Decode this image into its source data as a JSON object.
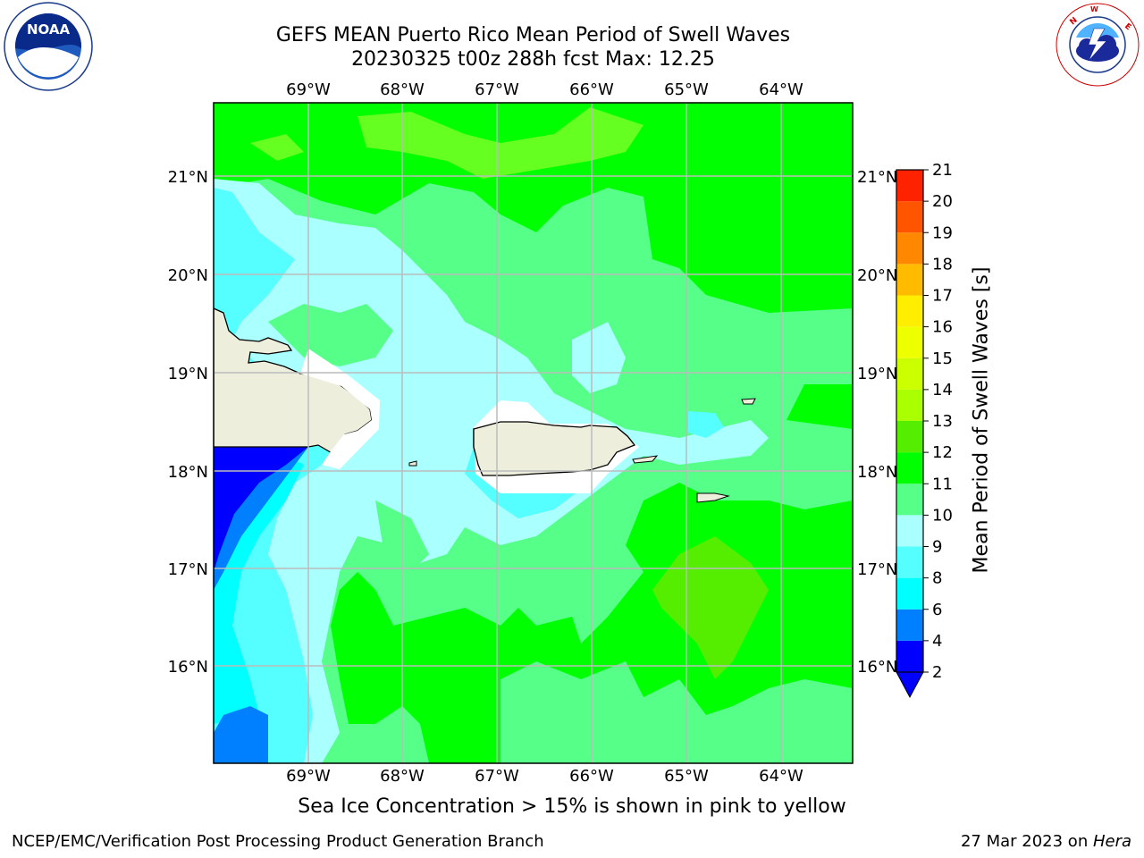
{
  "header": {
    "title_line1": "GEFS MEAN Puerto Rico Mean Period of Swell Waves",
    "title_line2": "20230325 t00z 288h fcst   Max: 12.25"
  },
  "logos": {
    "left": "noaa-logo",
    "left_text": "NOAA",
    "left_ring_text": "NATIONAL OCEANIC AND ATMOSPHERIC ADMINISTRATION",
    "left_ring_bottom": "U.S. DEPARTMENT OF COMMERCE",
    "right": "nws-logo",
    "right_ring_text": "NATIONAL WEATHER SERVICE"
  },
  "map": {
    "lon_labels": [
      "69°W",
      "68°W",
      "67°W",
      "66°W",
      "65°W",
      "64°W"
    ],
    "lat_labels": [
      "21°N",
      "20°N",
      "19°N",
      "18°N",
      "17°N",
      "16°N"
    ],
    "land_color": "#eeeedd",
    "coast_color": "#000000",
    "grid_color": "#bbbbbb"
  },
  "colorbar": {
    "label": "Mean Period of Swell Waves [s]",
    "ticks": [
      "2",
      "4",
      "6",
      "8",
      "9",
      "10",
      "11",
      "12",
      "13",
      "14",
      "15",
      "16",
      "17",
      "18",
      "19",
      "20",
      "21"
    ],
    "colors": [
      "#0000ff",
      "#0080ff",
      "#00ffff",
      "#55ffff",
      "#aaffff",
      "#55ff88",
      "#00ff00",
      "#55ee00",
      "#aaff00",
      "#ccff00",
      "#eeff00",
      "#ffee00",
      "#ffbb00",
      "#ff8800",
      "#ff5500",
      "#ff2200",
      "#ff0000"
    ],
    "extend_color": "#0000ff"
  },
  "subtitle": "Sea Ice Concentration > 15% is shown in pink to yellow",
  "footer": {
    "left": "NCEP/EMC/Verification Post Processing Product Generation Branch",
    "right_date": "27 Mar 2023 on ",
    "right_host": "Hera"
  }
}
